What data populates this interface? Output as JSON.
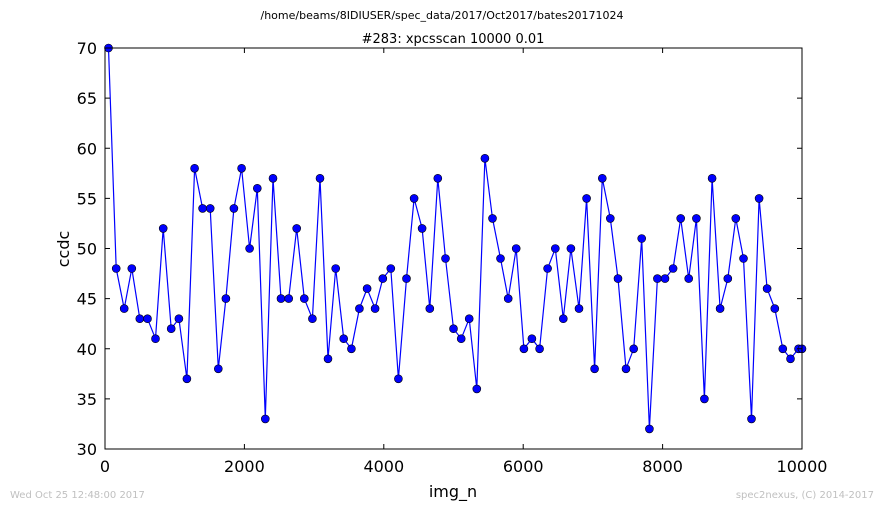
{
  "suptitle": "/home/beams/8IDIUSER/spec_data/2017/Oct2017/bates20171024",
  "footer": {
    "timestamp": "Wed Oct 25 12:48:00 2017",
    "credit": "spec2nexus, (C) 2014-2017"
  },
  "colors": {
    "line": "#0000ff",
    "marker": "#0000ff",
    "marker_edge": "#000000"
  },
  "chart_data": {
    "type": "line",
    "title": "#283: xpcsscan 10000 0.01",
    "xlabel": "img_n",
    "ylabel": "ccdc",
    "xlim": [
      0,
      10000
    ],
    "ylim": [
      30,
      70
    ],
    "xticks": [
      0,
      2000,
      4000,
      6000,
      8000,
      10000
    ],
    "yticks": [
      30,
      35,
      40,
      45,
      50,
      55,
      60,
      65,
      70
    ],
    "grid": false,
    "marker": "circle",
    "series": [
      {
        "name": "",
        "x": [
          50,
          160,
          275,
          385,
          500,
          610,
          725,
          835,
          950,
          1060,
          1175,
          1285,
          1400,
          1510,
          1625,
          1735,
          1850,
          1960,
          2075,
          2185,
          2300,
          2410,
          2525,
          2635,
          2750,
          2860,
          2975,
          3085,
          3200,
          3310,
          3425,
          3535,
          3650,
          3760,
          3875,
          3985,
          4100,
          4210,
          4325,
          4435,
          4550,
          4660,
          4775,
          4885,
          5000,
          5110,
          5225,
          5335,
          5450,
          5560,
          5675,
          5785,
          5900,
          6010,
          6125,
          6235,
          6350,
          6460,
          6575,
          6685,
          6800,
          6910,
          7025,
          7135,
          7250,
          7360,
          7475,
          7585,
          7700,
          7810,
          7925,
          8035,
          8150,
          8260,
          8375,
          8485,
          8600,
          8710,
          8825,
          8935,
          9050,
          9160,
          9275,
          9385,
          9500,
          9610,
          9725,
          9835,
          9950,
          10000
        ],
        "values": [
          70,
          48,
          44,
          48,
          43,
          43,
          41,
          52,
          42,
          43,
          37,
          58,
          54,
          54,
          38,
          45,
          54,
          58,
          50,
          56,
          33,
          57,
          45,
          45,
          52,
          45,
          43,
          57,
          39,
          48,
          41,
          40,
          44,
          46,
          44,
          47,
          48,
          37,
          47,
          55,
          52,
          44,
          57,
          49,
          42,
          41,
          43,
          36,
          59,
          53,
          49,
          45,
          50,
          40,
          41,
          40,
          48,
          50,
          43,
          50,
          44,
          55,
          38,
          57,
          53,
          47,
          38,
          40,
          51,
          32,
          47,
          47,
          48,
          53,
          47,
          53,
          35,
          57,
          44,
          47,
          53,
          49,
          33,
          55,
          46,
          44,
          40,
          39,
          40,
          40
        ]
      }
    ]
  }
}
